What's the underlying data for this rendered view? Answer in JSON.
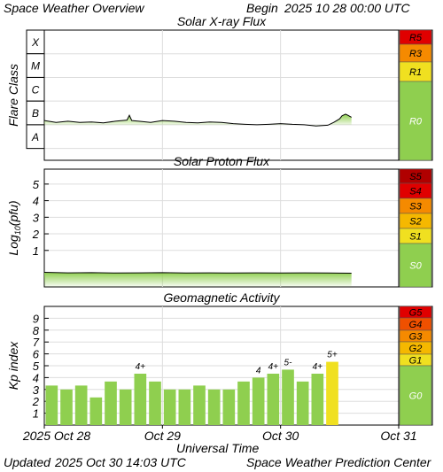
{
  "header": {
    "title": "Space Weather Overview",
    "begin_label": "Begin",
    "begin_value": "2025 10 28 00:00 UTC"
  },
  "footer": {
    "x_axis_label": "Universal Time",
    "updated_label": "Updated",
    "updated_value": "2025 Oct 30 14:03 UTC",
    "credit": "Space Weather Prediction Center"
  },
  "colors": {
    "green": "#8fcf4f",
    "yellow": "#f0e020",
    "light_orange": "#f5b800",
    "orange": "#f58a00",
    "red_orange": "#f05000",
    "red": "#e00000",
    "dark_red": "#b00000",
    "flux_line": "#000000"
  },
  "chart_data": [
    {
      "type": "line",
      "title": "Solar X-ray Flux",
      "ylabel": "Flare Class",
      "y_levels": [
        "X",
        "M",
        "C",
        "B",
        "A"
      ],
      "x_categories": [
        "2025 Oct 28",
        "Oct 29",
        "Oct 30",
        "Oct 31"
      ],
      "x_range_days": [
        0,
        3
      ],
      "y_range_log_flux": [
        -8.5,
        -3
      ],
      "series": [
        {
          "x_days": [
            0,
            0.1,
            0.2,
            0.3,
            0.4,
            0.5,
            0.6,
            0.7,
            0.72,
            0.74,
            0.8,
            0.9,
            1.0,
            1.1,
            1.2,
            1.3,
            1.4,
            1.5,
            1.6,
            1.7,
            1.8,
            1.9,
            2.0,
            2.1,
            2.2,
            2.3,
            2.4,
            2.45,
            2.5,
            2.52,
            2.55,
            2.57,
            2.6
          ],
          "values_log_flux": [
            -6.82,
            -6.9,
            -6.85,
            -6.9,
            -6.88,
            -6.92,
            -6.85,
            -6.8,
            -6.6,
            -6.82,
            -6.85,
            -6.9,
            -6.82,
            -6.85,
            -6.9,
            -6.92,
            -6.88,
            -6.9,
            -6.95,
            -6.98,
            -7.0,
            -6.98,
            -6.95,
            -6.98,
            -7.0,
            -7.05,
            -7.02,
            -6.9,
            -6.75,
            -6.62,
            -6.55,
            -6.6,
            -6.68
          ]
        }
      ],
      "scale": [
        {
          "label": "R5",
          "color": "#e00000"
        },
        {
          "label": "R3",
          "color": "#f58a00"
        },
        {
          "label": "R1",
          "color": "#f0e020"
        },
        {
          "label": "R0",
          "color": "#8fcf4f"
        }
      ]
    },
    {
      "type": "line",
      "title": "Solar Proton Flux",
      "ylabel": "Log10(pfu)",
      "ylabel_main": "Log",
      "ylabel_sub": "10",
      "ylabel_tail": "(pfu)",
      "y_ticks": [
        "5",
        "4",
        "3",
        "2",
        "1"
      ],
      "x_categories": [
        "2025 Oct 28",
        "Oct 29",
        "Oct 30",
        "Oct 31"
      ],
      "x_range_days": [
        0,
        3
      ],
      "y_range_log_pfu": [
        -1.2,
        5.9
      ],
      "series": [
        {
          "x_days": [
            0,
            0.2,
            0.4,
            0.6,
            0.8,
            1.0,
            1.2,
            1.4,
            1.6,
            1.8,
            2.0,
            2.2,
            2.4,
            2.6
          ],
          "values_log_pfu": [
            -0.32,
            -0.35,
            -0.34,
            -0.36,
            -0.35,
            -0.34,
            -0.36,
            -0.35,
            -0.36,
            -0.35,
            -0.36,
            -0.35,
            -0.36,
            -0.37
          ]
        }
      ],
      "scale": [
        {
          "label": "S5",
          "color": "#b00000"
        },
        {
          "label": "S4",
          "color": "#e00000"
        },
        {
          "label": "S3",
          "color": "#f58a00"
        },
        {
          "label": "S2",
          "color": "#f5b800"
        },
        {
          "label": "S1",
          "color": "#f0e020"
        },
        {
          "label": "S0",
          "color": "#8fcf4f"
        }
      ]
    },
    {
      "type": "bar",
      "title": "Geomagnetic Activity",
      "ylabel": "Kp index",
      "y_ticks": [
        "9",
        "8",
        "7",
        "6",
        "5",
        "4",
        "3",
        "2",
        "1"
      ],
      "ylim": [
        0,
        10
      ],
      "x_categories": [
        "2025 Oct 28",
        "Oct 29",
        "Oct 30",
        "Oct 31"
      ],
      "x_range_days": [
        0,
        3
      ],
      "bars": [
        {
          "start_day": 0.0,
          "value": 3.33
        },
        {
          "start_day": 0.125,
          "value": 3.0
        },
        {
          "start_day": 0.25,
          "value": 3.33
        },
        {
          "start_day": 0.375,
          "value": 2.33
        },
        {
          "start_day": 0.5,
          "value": 3.67
        },
        {
          "start_day": 0.625,
          "value": 3.0
        },
        {
          "start_day": 0.75,
          "value": 4.33,
          "label": "4+"
        },
        {
          "start_day": 0.875,
          "value": 3.67
        },
        {
          "start_day": 1.0,
          "value": 3.0
        },
        {
          "start_day": 1.125,
          "value": 3.0
        },
        {
          "start_day": 1.25,
          "value": 3.33
        },
        {
          "start_day": 1.375,
          "value": 3.0
        },
        {
          "start_day": 1.5,
          "value": 3.0
        },
        {
          "start_day": 1.625,
          "value": 3.67
        },
        {
          "start_day": 1.75,
          "value": 4.0,
          "label": "4"
        },
        {
          "start_day": 1.875,
          "value": 4.33,
          "label": "4+"
        },
        {
          "start_day": 2.0,
          "value": 4.67,
          "label": "5-"
        },
        {
          "start_day": 2.125,
          "value": 3.67
        },
        {
          "start_day": 2.25,
          "value": 4.33,
          "label": "4+"
        },
        {
          "start_day": 2.375,
          "value": 5.33,
          "label": "5+"
        }
      ],
      "scale": [
        {
          "label": "G5",
          "color": "#e00000"
        },
        {
          "label": "G4",
          "color": "#f05000"
        },
        {
          "label": "G3",
          "color": "#f58a00"
        },
        {
          "label": "G2",
          "color": "#f5b800"
        },
        {
          "label": "G1",
          "color": "#f0e020"
        },
        {
          "label": "G0",
          "color": "#8fcf4f"
        }
      ]
    }
  ]
}
